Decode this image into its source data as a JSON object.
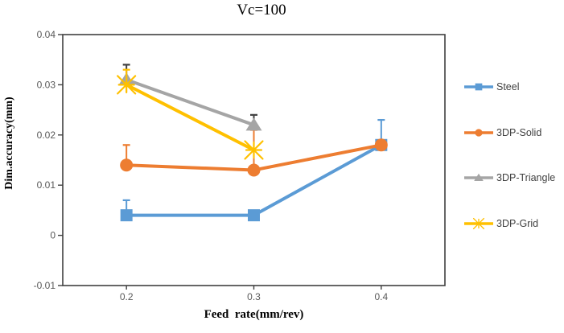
{
  "chart_data": {
    "type": "line",
    "title": "Vc=100",
    "xlabel": "Feed  rate(mm/rev)",
    "ylabel": "Dim.accuracy(mm)",
    "x_categories": [
      "0.2",
      "0.3",
      "0.4"
    ],
    "ylim": [
      -0.01,
      0.04
    ],
    "yticks": [
      {
        "label": "0.04",
        "value": 0.04
      },
      {
        "label": "0.03",
        "value": 0.03
      },
      {
        "label": "0.02",
        "value": 0.02
      },
      {
        "label": "0.01",
        "value": 0.01
      },
      {
        "label": "0",
        "value": 0
      },
      {
        "label": "-0.01",
        "value": -0.01
      }
    ],
    "grid": false,
    "legend_position": "right",
    "series": [
      {
        "name": "Steel",
        "color": "#5B9BD5",
        "marker": "square",
        "values": [
          0.004,
          0.004,
          0.018
        ],
        "err_plus": [
          0.003,
          null,
          0.005
        ]
      },
      {
        "name": "3DP-Solid",
        "color": "#ED7D31",
        "marker": "circle",
        "values": [
          0.014,
          0.013,
          0.018
        ],
        "err_plus": [
          0.004,
          0.008,
          null
        ]
      },
      {
        "name": "3DP-Triangle",
        "color": "#A5A5A5",
        "marker": "triangle",
        "values": [
          0.031,
          0.022,
          null
        ],
        "err_plus": [
          0.003,
          0.002,
          null
        ],
        "err_color": "#404040"
      },
      {
        "name": "3DP-Grid",
        "color": "#FFC000",
        "marker": "star",
        "values": [
          0.03,
          0.017,
          null
        ],
        "err_plus": [
          0.003,
          null,
          null
        ]
      }
    ],
    "colors": {
      "axis": "#404040",
      "tick_label": "#595959",
      "legend_text": "#404040",
      "title_text": "#000000"
    }
  }
}
